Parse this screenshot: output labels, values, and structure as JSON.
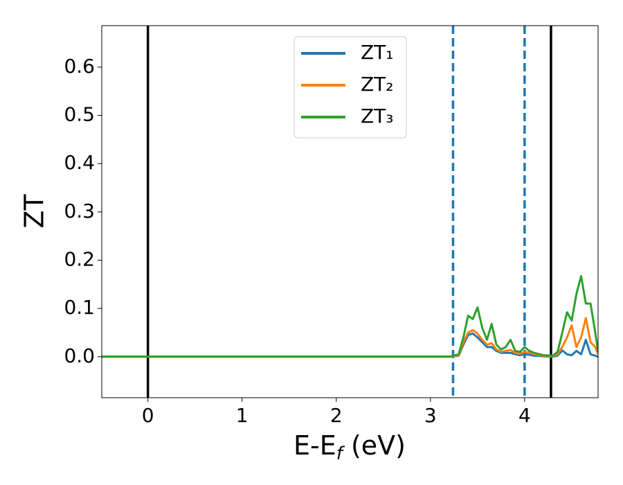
{
  "chart_data": {
    "type": "line",
    "xlabel_parts": [
      "E-E",
      "f",
      " (eV)"
    ],
    "ylabel": "ZT",
    "x": [
      -0.49,
      3.2,
      3.3,
      3.35,
      3.4,
      3.45,
      3.5,
      3.55,
      3.6,
      3.65,
      3.7,
      3.75,
      3.8,
      3.85,
      3.9,
      3.95,
      4.0,
      4.05,
      4.1,
      4.2,
      4.3,
      4.35,
      4.4,
      4.45,
      4.5,
      4.55,
      4.6,
      4.65,
      4.7,
      4.75,
      4.78
    ],
    "series": [
      {
        "name": "ZT₁",
        "color": "#1f77b4",
        "values": [
          0,
          0,
          0.002,
          0.025,
          0.045,
          0.048,
          0.04,
          0.03,
          0.02,
          0.02,
          0.012,
          0.008,
          0.008,
          0.008,
          0.005,
          0.003,
          0.005,
          0.004,
          0.002,
          0.001,
          0,
          0.002,
          0.013,
          0.005,
          0.003,
          0.012,
          0.005,
          0.035,
          0.005,
          0.002,
          0
        ]
      },
      {
        "name": "ZT₂",
        "color": "#ff7f0e",
        "values": [
          0,
          0,
          0.003,
          0.03,
          0.05,
          0.055,
          0.048,
          0.035,
          0.025,
          0.028,
          0.015,
          0.01,
          0.012,
          0.014,
          0.008,
          0.006,
          0.01,
          0.008,
          0.005,
          0.002,
          0.001,
          0.005,
          0.02,
          0.04,
          0.065,
          0.02,
          0.04,
          0.08,
          0.03,
          0.02,
          0.005
        ]
      },
      {
        "name": "ZT₃",
        "color": "#2ca02c",
        "values": [
          0,
          0,
          0.005,
          0.04,
          0.085,
          0.078,
          0.102,
          0.06,
          0.035,
          0.068,
          0.025,
          0.015,
          0.02,
          0.035,
          0.012,
          0.01,
          0.02,
          0.012,
          0.008,
          0.003,
          0.002,
          0.01,
          0.05,
          0.092,
          0.075,
          0.13,
          0.167,
          0.11,
          0.11,
          0.05,
          0.01
        ]
      }
    ],
    "vlines": [
      {
        "x": 0,
        "color": "#000000",
        "style": "solid"
      },
      {
        "x": 3.24,
        "color": "#1f77b4",
        "style": "dashed"
      },
      {
        "x": 4.0,
        "color": "#1f77b4",
        "style": "dashed"
      },
      {
        "x": 4.28,
        "color": "#000000",
        "style": "solid"
      }
    ],
    "xlim": [
      -0.49,
      4.78
    ],
    "ylim": [
      -0.085,
      0.686
    ],
    "xticks": [
      0,
      1,
      2,
      3,
      4
    ],
    "yticks": [
      {
        "value": 0,
        "label": "0.0"
      },
      {
        "value": 0.1,
        "label": "0.1"
      },
      {
        "value": 0.2,
        "label": "0.2"
      },
      {
        "value": 0.3,
        "label": "0.3"
      },
      {
        "value": 0.4,
        "label": "0.4"
      },
      {
        "value": 0.5,
        "label": "0.5"
      },
      {
        "value": 0.6,
        "label": "0.6"
      }
    ],
    "legend": "upper center"
  }
}
